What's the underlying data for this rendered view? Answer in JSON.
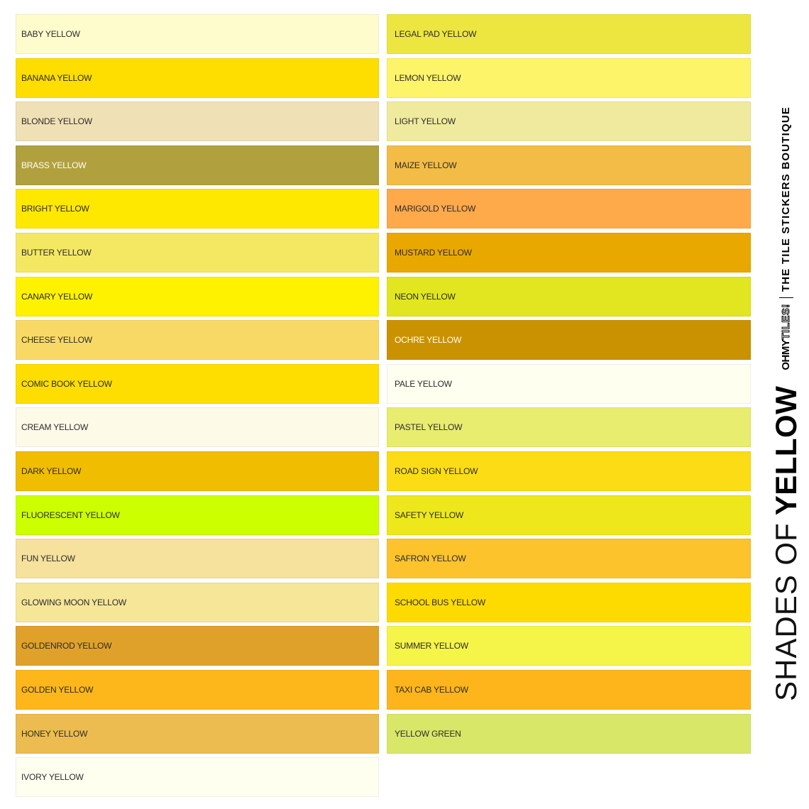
{
  "title": {
    "light_part": "SHADES OF",
    "bold_part": "YELLOW"
  },
  "brand": {
    "oh": "OH",
    "my": "MY",
    "tiles": "TILES!",
    "tagline": "THE TILE STICKERS BOUTIQUE"
  },
  "left_column": [
    {
      "label": "BABY YELLOW",
      "color": "#FEFCCD"
    },
    {
      "label": "BANANA YELLOW",
      "color": "#FEDD00"
    },
    {
      "label": "BLONDE YELLOW",
      "color": "#F0E0B5"
    },
    {
      "label": "BRASS YELLOW",
      "color": "#B1A03E"
    },
    {
      "label": "BRIGHT YELLOW",
      "color": "#FEE800"
    },
    {
      "label": "BUTTER YELLOW",
      "color": "#F4E863"
    },
    {
      "label": "CANARY YELLOW",
      "color": "#FEF200"
    },
    {
      "label": "CHEESE YELLOW",
      "color": "#F9D966"
    },
    {
      "label": "COMIC BOOK YELLOW",
      "color": "#FEDD00"
    },
    {
      "label": "CREAM YELLOW",
      "color": "#FEFAE8"
    },
    {
      "label": "DARK YELLOW",
      "color": "#F1BD00"
    },
    {
      "label": "FLUORESCENT YELLOW",
      "color": "#CCFF00"
    },
    {
      "label": "FUN YELLOW",
      "color": "#F6E19D"
    },
    {
      "label": "GLOWING MOON YELLOW",
      "color": "#F6E698"
    },
    {
      "label": "GOLDENROD YELLOW",
      "color": "#E0A12B"
    },
    {
      "label": "GOLDEN YELLOW",
      "color": "#FDB71B"
    },
    {
      "label": "HONEY YELLOW",
      "color": "#ECBC50"
    },
    {
      "label": "IVORY YELLOW",
      "color": "#FFFFF0"
    }
  ],
  "right_column": [
    {
      "label": "LEGAL PAD YELLOW",
      "color": "#EDE640"
    },
    {
      "label": "LEMON YELLOW",
      "color": "#FEF46A"
    },
    {
      "label": "LIGHT YELLOW",
      "color": "#F0EA9E"
    },
    {
      "label": "MAIZE YELLOW",
      "color": "#F2BC47"
    },
    {
      "label": "MARIGOLD YELLOW",
      "color": "#FEA94A"
    },
    {
      "label": "MUSTARD YELLOW",
      "color": "#E9A800"
    },
    {
      "label": "NEON YELLOW",
      "color": "#E1E620"
    },
    {
      "label": "OCHRE YELLOW",
      "color": "#CB9200"
    },
    {
      "label": "PALE YELLOW",
      "color": "#FEFFEF"
    },
    {
      "label": "PASTEL YELLOW",
      "color": "#E8EC6F"
    },
    {
      "label": "ROAD SIGN YELLOW",
      "color": "#FCDC15"
    },
    {
      "label": "SAFETY YELLOW",
      "color": "#EEE71B"
    },
    {
      "label": "SAFRON YELLOW",
      "color": "#FCC32C"
    },
    {
      "label": "SCHOOL BUS YELLOW",
      "color": "#FEDB00"
    },
    {
      "label": "SUMMER YELLOW",
      "color": "#F5F449"
    },
    {
      "label": "TAXI CAB YELLOW",
      "color": "#FDB51B"
    },
    {
      "label": "YELLOW GREEN",
      "color": "#D9E769"
    }
  ]
}
